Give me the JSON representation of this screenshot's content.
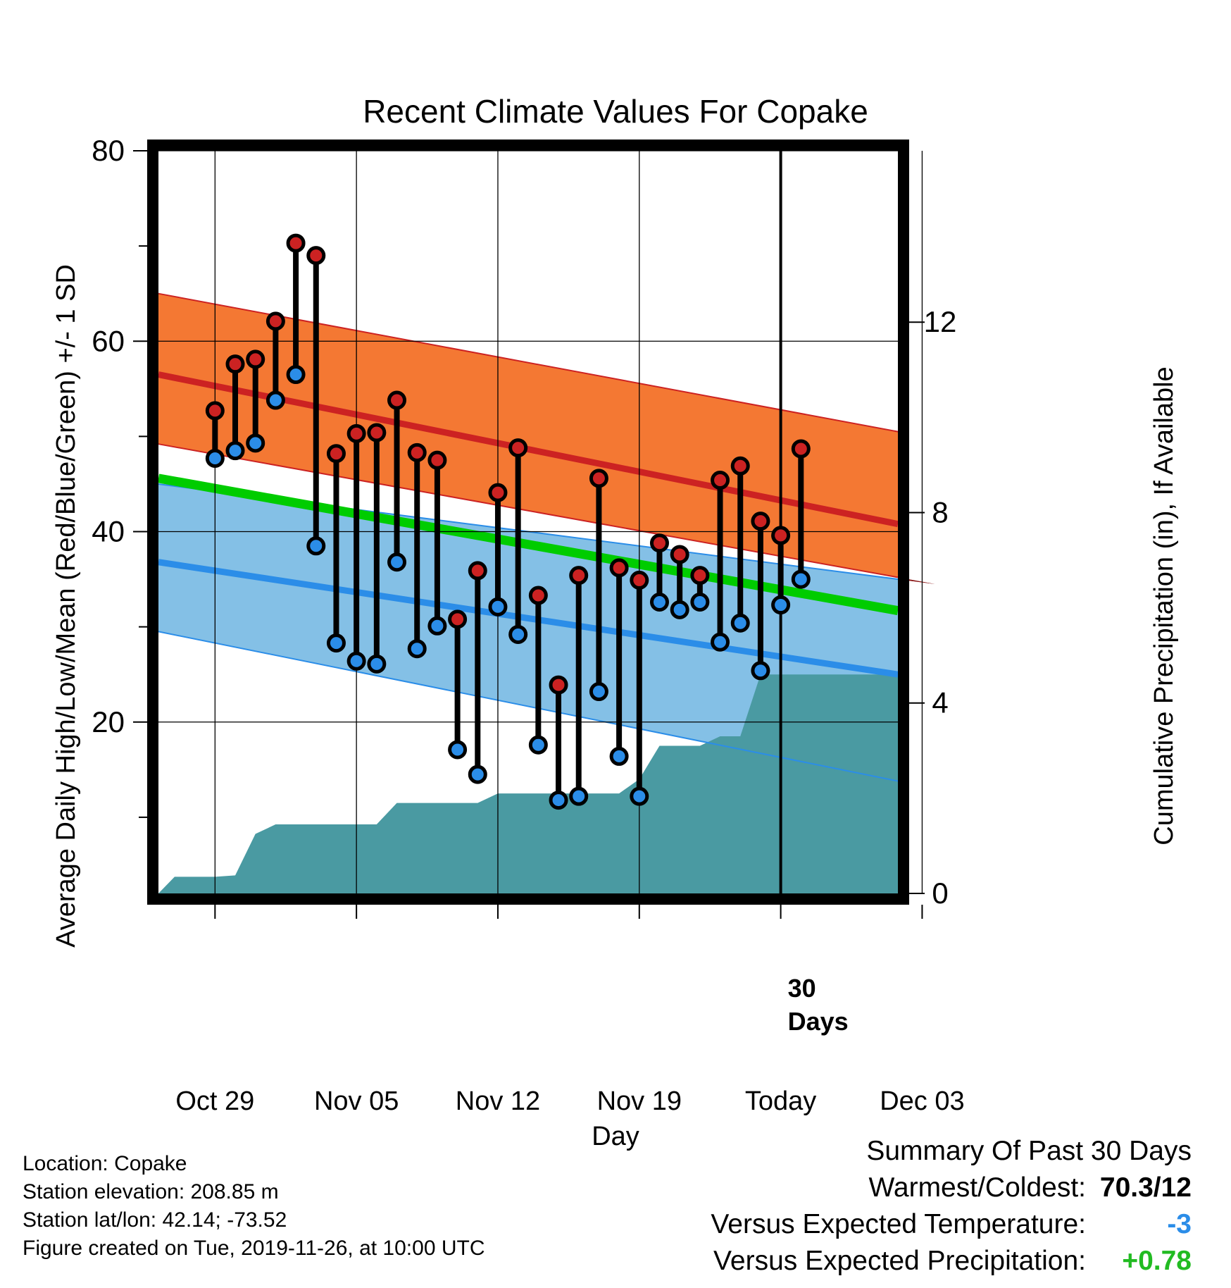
{
  "chart_data": {
    "type": "line",
    "title": "Recent Climate Values For Copake",
    "xlabel": "Day",
    "ylabel": "Average Daily High/Low/Mean (Red/Blue/Green) +/- 1 SD",
    "y2label": "Cumulative Precipitation (in), If Available",
    "ylim": [
      2,
      80
    ],
    "y2lim": [
      0,
      15.6
    ],
    "xlim": [
      -2.8,
      33.8
    ],
    "yticks": [
      20,
      40,
      60,
      80
    ],
    "y2ticks": [
      0,
      4,
      8,
      12
    ],
    "xtick_positions": [
      0,
      7,
      14,
      21,
      28,
      35
    ],
    "xtick_labels": [
      "Oct 29",
      "Nov 05",
      "Nov 12",
      "Nov 19",
      "Today",
      "Dec 03"
    ],
    "today_index": 28,
    "today_annotation": [
      "30",
      "Days"
    ],
    "grid": true,
    "normal_high": {
      "start": 56.5,
      "end": 40.8
    },
    "normal_high_upper": {
      "start": 65.0,
      "end": 50.5
    },
    "normal_high_lower": {
      "start": 49.2,
      "end": 35.2
    },
    "normal_mean": {
      "start": 45.6,
      "end": 31.7
    },
    "normal_low": {
      "start": 36.8,
      "end": 25.0
    },
    "normal_low_upper": {
      "start": 45.0,
      "end": 35.0
    },
    "normal_low_lower": {
      "start": 29.5,
      "end": 13.8
    },
    "series": [
      {
        "name": "High",
        "color": "#cc2222",
        "values": [
          52.7,
          57.6,
          58.1,
          62.1,
          70.3,
          69.0,
          48.2,
          50.3,
          50.4,
          53.8,
          48.3,
          47.5,
          30.8,
          35.9,
          44.1,
          48.8,
          33.3,
          23.9,
          35.4,
          45.6,
          36.2,
          34.9,
          38.8,
          37.6,
          35.4,
          45.4,
          46.9,
          41.1,
          39.6,
          48.7
        ]
      },
      {
        "name": "Low",
        "color": "#2b8de8",
        "values": [
          47.7,
          48.5,
          49.3,
          53.8,
          56.5,
          38.5,
          28.3,
          26.4,
          26.1,
          36.8,
          27.7,
          30.1,
          17.1,
          14.5,
          32.1,
          29.2,
          17.6,
          11.8,
          12.2,
          23.2,
          16.4,
          12.2,
          32.6,
          31.8,
          32.6,
          28.4,
          30.4,
          25.4,
          32.3,
          35.0
        ]
      }
    ],
    "precip_x": [
      -2.8,
      -2.0,
      -1.0,
      0.0,
      1.0,
      2.0,
      3.0,
      4.0,
      5.0,
      6.0,
      7.0,
      8.0,
      9.0,
      10.0,
      11.0,
      12.0,
      13.0,
      14.0,
      15.0,
      16.0,
      17.0,
      18.0,
      19.0,
      20.0,
      21.0,
      22.0,
      23.0,
      24.0,
      25.0,
      26.0,
      27.0,
      28.0,
      29.0,
      33.8
    ],
    "precip": [
      0.0,
      0.35,
      0.35,
      0.35,
      0.38,
      1.25,
      1.45,
      1.45,
      1.45,
      1.45,
      1.45,
      1.45,
      1.9,
      1.9,
      1.9,
      1.9,
      1.9,
      2.1,
      2.1,
      2.1,
      2.1,
      2.1,
      2.1,
      2.1,
      2.4,
      3.1,
      3.1,
      3.1,
      3.3,
      3.3,
      4.6,
      4.6,
      4.6,
      4.6
    ]
  },
  "colors": {
    "high_band": "#f47833",
    "high_line": "#cc2222",
    "overlap_band": "#8b1818",
    "low_band": "#84c0e6",
    "low_line": "#2b8de8",
    "mean_line": "#00cc00",
    "precip_fill": "#4a9aa2",
    "cold_value": "#2b8de8",
    "wet_value": "#22bb22"
  },
  "info": {
    "location": "Location: Copake",
    "elevation": "Station elevation: 208.85 m",
    "latlon": "Station lat/lon: 42.14; -73.52",
    "created": "Figure created on Tue, 2019-11-26, at 10:00 UTC"
  },
  "summary": {
    "title": "Summary Of Past 30 Days",
    "warm_cold_label": "Warmest/Coldest:",
    "warm_cold_value": "70.3/12",
    "temp_label": "Versus Expected Temperature:",
    "temp_value": "-3",
    "precip_label": "Versus Expected Precipitation:",
    "precip_value": "+0.78"
  }
}
